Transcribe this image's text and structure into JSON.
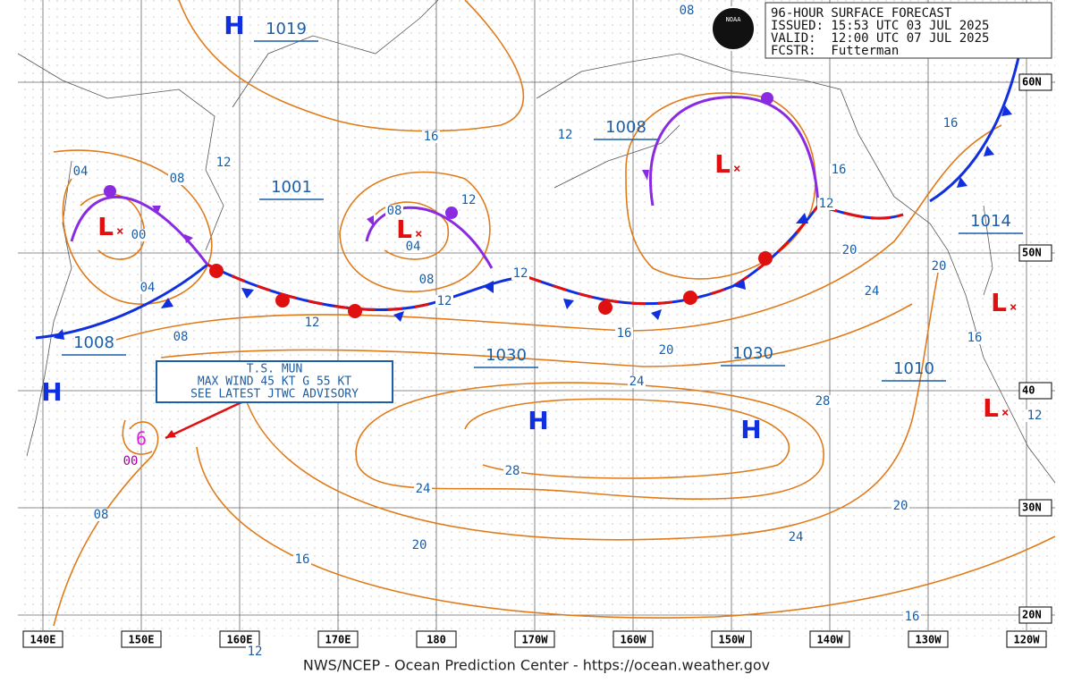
{
  "header": {
    "lines": [
      "96-HOUR SURFACE FORECAST",
      "ISSUED: 15:53 UTC 03 JUL 2025",
      "VALID:  12:00 UTC 07 JUL 2025",
      "FCSTR:  Futterman"
    ]
  },
  "logo": "NOAA",
  "footer": "NWS/NCEP - Ocean Prediction Center - https://ocean.weather.gov",
  "storm": {
    "lines": [
      "T.S. MUN",
      "MAX WIND 45 KT G 55 KT",
      "SEE LATEST JTWC ADVISORY"
    ]
  },
  "centers": [
    "H",
    "L",
    "L",
    "L",
    "H",
    "H",
    "H",
    "L",
    "L"
  ],
  "pressures": [
    "1019",
    "1001",
    "1008",
    "1008",
    "1030",
    "1030",
    "1014",
    "1010"
  ],
  "longitudes": [
    "140E",
    "150E",
    "160E",
    "170E",
    "180",
    "170W",
    "160W",
    "150W",
    "140W",
    "130W",
    "120W"
  ],
  "latitudes": [
    "60N",
    "50N",
    "40",
    "30N",
    "20N"
  ],
  "isobar_labels": [
    "08",
    "16",
    "12",
    "12",
    "08",
    "04",
    "00",
    "08",
    "04",
    "12",
    "08",
    "12",
    "12",
    "04",
    "12",
    "08",
    "16",
    "20",
    "24",
    "24",
    "20",
    "12",
    "16",
    "16",
    "20",
    "16",
    "12",
    "28",
    "28",
    "24",
    "20",
    "16",
    "08",
    "00",
    "20",
    "24",
    "16",
    "12"
  ]
}
